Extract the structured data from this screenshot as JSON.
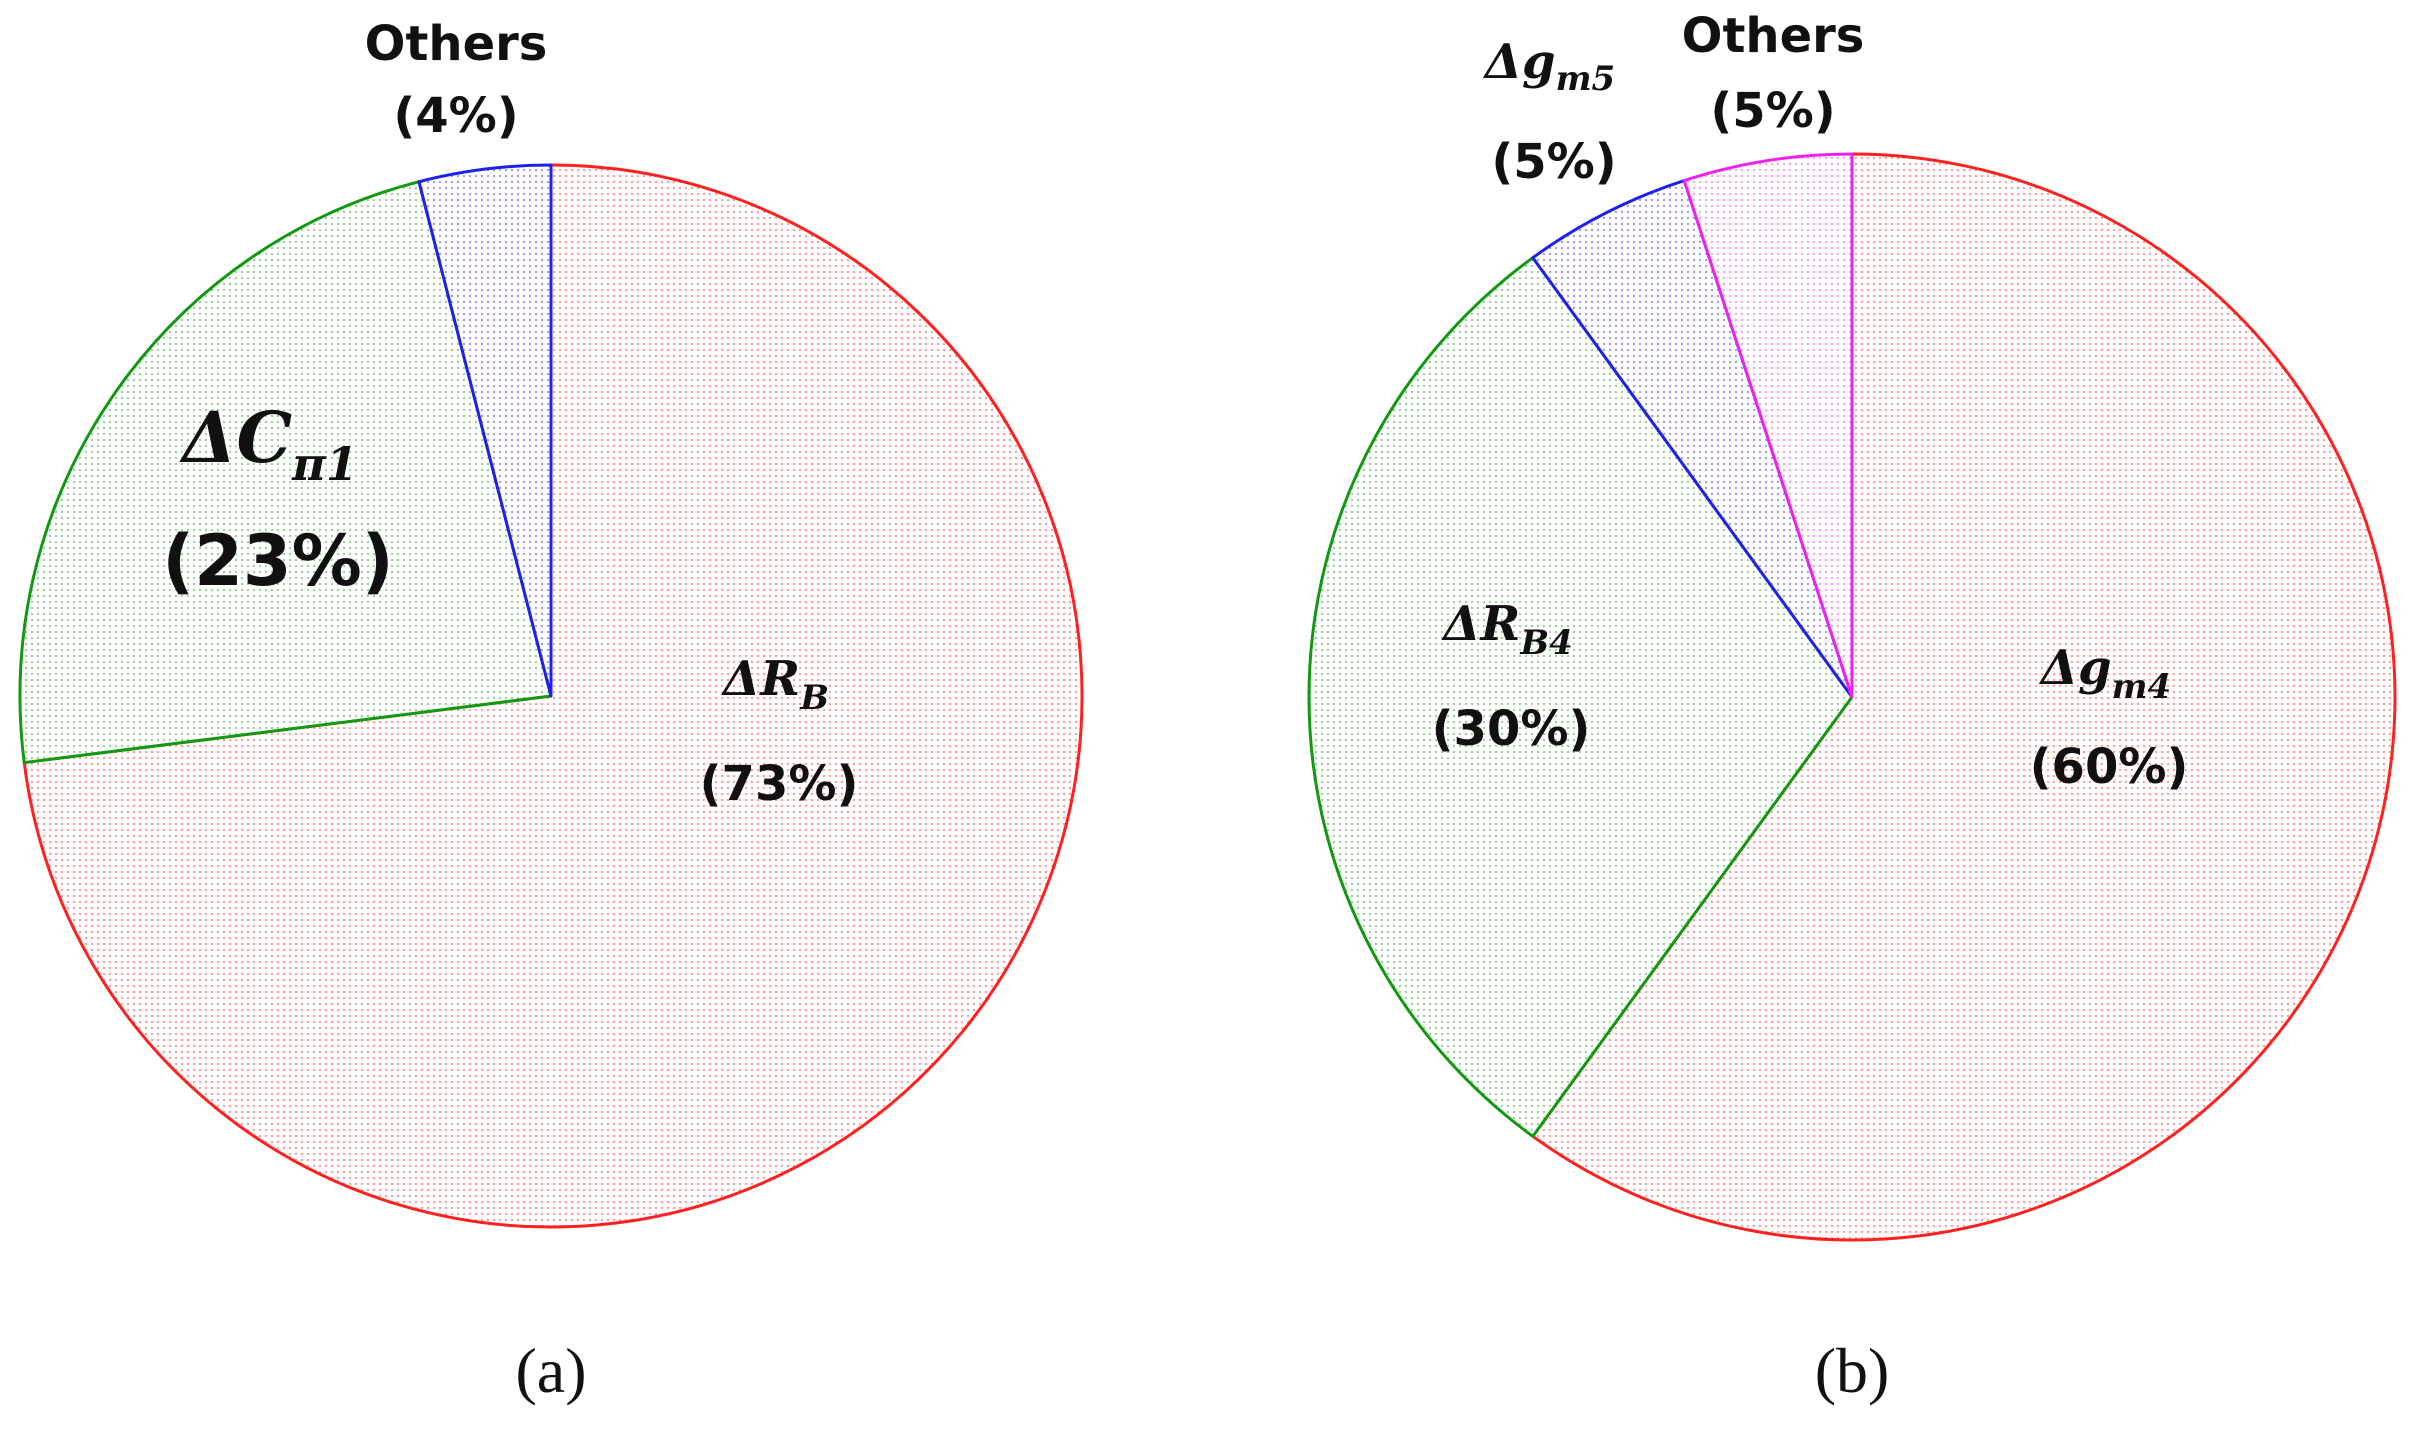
{
  "chart_data": [
    {
      "type": "pie",
      "caption": "(a)",
      "direction": "clockwise from top",
      "slices": [
        {
          "name": "ΔR_B",
          "label_main": "ΔR",
          "label_sub": "B",
          "value": 73,
          "pct_label": "(73%)",
          "color": "#ff2020",
          "fill": "#f7c8c8"
        },
        {
          "name": "ΔC_π1",
          "label_main": "ΔC",
          "label_sub": "π1",
          "value": 23,
          "pct_label": "(23%)",
          "color": "#119911",
          "fill": "#b9dcb9"
        },
        {
          "name": "Others",
          "label_main": "Others",
          "label_sub": "",
          "value": 4,
          "pct_label": "(4%)",
          "color": "#2020ee",
          "fill": "#c6c6f2"
        }
      ]
    },
    {
      "type": "pie",
      "caption": "(b)",
      "direction": "clockwise from top",
      "slices": [
        {
          "name": "Δg_m4",
          "label_main": "Δg",
          "label_sub": "m4",
          "value": 60,
          "pct_label": "(60%)",
          "color": "#ff2020",
          "fill": "#f7c8c8"
        },
        {
          "name": "ΔR_B4",
          "label_main": "ΔR",
          "label_sub": "B4",
          "value": 30,
          "pct_label": "(30%)",
          "color": "#119911",
          "fill": "#b9dcb9"
        },
        {
          "name": "Δg_m5",
          "label_main": "Δg",
          "label_sub": "m5",
          "value": 5,
          "pct_label": "(5%)",
          "color": "#2020ee",
          "fill": "#c6c6f2"
        },
        {
          "name": "Others",
          "label_main": "Others",
          "label_sub": "",
          "value": 5,
          "pct_label": "(5%)",
          "color": "#ee22ee",
          "fill": "#f5c6f5"
        }
      ]
    }
  ]
}
